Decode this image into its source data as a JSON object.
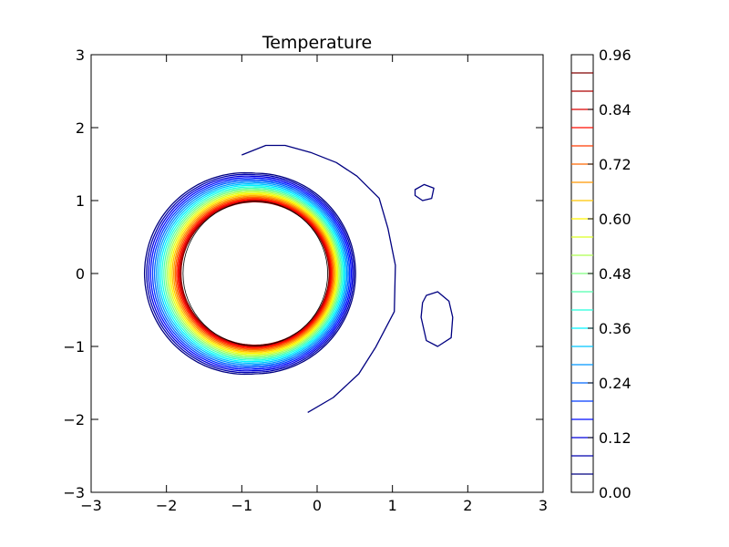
{
  "chart_data": {
    "type": "contour",
    "title": "Temperature",
    "xlabel": "",
    "ylabel": "",
    "xlim": [
      -3,
      3
    ],
    "ylim": [
      -3,
      3
    ],
    "x_ticks": [
      "−3",
      "−2",
      "−1",
      "0",
      "1",
      "2",
      "3"
    ],
    "y_ticks": [
      "−3",
      "−2",
      "−1",
      "0",
      "1",
      "2",
      "3"
    ],
    "grid": false,
    "colorbar": {
      "range": [
        0,
        0.96
      ],
      "tick_labels": [
        "0.00",
        "0.12",
        "0.24",
        "0.36",
        "0.48",
        "0.60",
        "0.72",
        "0.84",
        "0.96"
      ],
      "levels": [
        0.04,
        0.08,
        0.12,
        0.16,
        0.2,
        0.24,
        0.28,
        0.32,
        0.36,
        0.4,
        0.44,
        0.48,
        0.52,
        0.56,
        0.6,
        0.64,
        0.68,
        0.72,
        0.76,
        0.8,
        0.84,
        0.88,
        0.92
      ],
      "colormap": "jet"
    },
    "ring": {
      "center": [
        -0.82,
        0.0
      ],
      "inner_radius": 0.96,
      "outer_radius_max": 1.33,
      "offset_direction": "left"
    },
    "outer_contours": [
      {
        "name": "outer-arc",
        "level": 0.04,
        "points": [
          [
            -1.0,
            1.6
          ],
          [
            -0.7,
            1.76
          ],
          [
            -0.4,
            1.78
          ],
          [
            -0.1,
            1.65
          ],
          [
            0.25,
            1.5
          ],
          [
            0.55,
            1.35
          ],
          [
            0.8,
            1.05
          ],
          [
            0.95,
            0.6
          ],
          [
            1.05,
            0.1
          ],
          [
            1.0,
            -0.5
          ],
          [
            0.8,
            -1.0
          ],
          [
            0.55,
            -1.4
          ],
          [
            0.2,
            -1.7
          ],
          [
            -0.1,
            -1.88
          ]
        ]
      },
      {
        "name": "right-blob-top",
        "level": 0.04,
        "points": [
          [
            1.3,
            1.15
          ],
          [
            1.42,
            1.22
          ],
          [
            1.55,
            1.17
          ],
          [
            1.52,
            1.03
          ],
          [
            1.4,
            1.0
          ],
          [
            1.3,
            1.07
          ]
        ]
      },
      {
        "name": "right-blob-bottom",
        "level": 0.04,
        "points": [
          [
            1.45,
            -0.3
          ],
          [
            1.6,
            -0.25
          ],
          [
            1.75,
            -0.38
          ],
          [
            1.8,
            -0.6
          ],
          [
            1.78,
            -0.88
          ],
          [
            1.6,
            -1.0
          ],
          [
            1.45,
            -0.92
          ],
          [
            1.38,
            -0.6
          ],
          [
            1.4,
            -0.4
          ]
        ]
      }
    ]
  }
}
